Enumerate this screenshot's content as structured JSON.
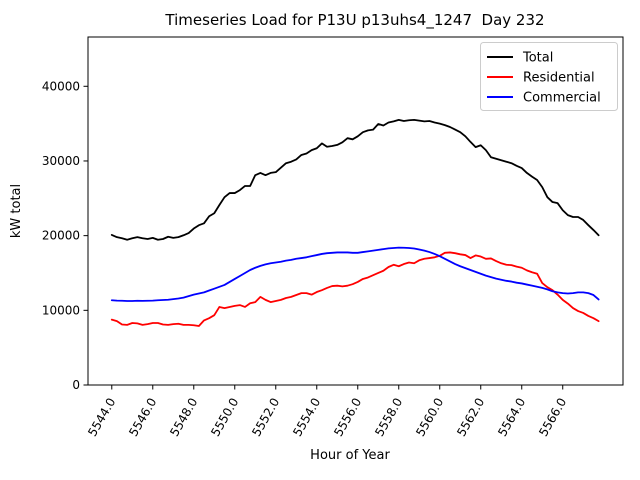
{
  "title": "Timeseries Load for P13U p13uhs4_1247  Day 232",
  "chart_data": {
    "type": "line",
    "title": "Timeseries Load for P13U p13uhs4_1247  Day 232",
    "xlabel": "Hour of Year",
    "ylabel": "kW total",
    "xlim": [
      5542.84,
      5568.94
    ],
    "ylim": [
      0,
      46600
    ],
    "grid": false,
    "legend_position": "upper right",
    "x_tick_values": [
      5544,
      5546,
      5548,
      5550,
      5552,
      5554,
      5556,
      5558,
      5560,
      5562,
      5564,
      5566
    ],
    "x_tick_labels": [
      "5544.0",
      "5546.0",
      "5548.0",
      "5550.0",
      "5552.0",
      "5554.0",
      "5556.0",
      "5558.0",
      "5560.0",
      "5562.0",
      "5564.0",
      "5566.0"
    ],
    "y_tick_values": [
      0,
      10000,
      20000,
      30000,
      40000
    ],
    "y_tick_labels": [
      "0",
      "10000",
      "20000",
      "30000",
      "40000"
    ],
    "x_start": 5544.0,
    "x_step": 0.25,
    "series": [
      {
        "name": "Total",
        "color": "#000000",
        "values": [
          20100,
          19800,
          19650,
          19450,
          19650,
          19800,
          19650,
          19550,
          19700,
          19450,
          19550,
          19850,
          19700,
          19800,
          20050,
          20350,
          20950,
          21400,
          21650,
          22600,
          23000,
          24100,
          25150,
          25700,
          25700,
          26100,
          26650,
          26650,
          28100,
          28400,
          28100,
          28400,
          28500,
          29100,
          29700,
          29900,
          30200,
          30800,
          31000,
          31450,
          31700,
          32350,
          31900,
          32000,
          32150,
          32500,
          33050,
          32900,
          33300,
          33850,
          34100,
          34200,
          34950,
          34750,
          35150,
          35300,
          35500,
          35350,
          35450,
          35500,
          35400,
          35300,
          35350,
          35150,
          35000,
          34800,
          34550,
          34200,
          33850,
          33300,
          32550,
          31850,
          32100,
          31450,
          30500,
          30300,
          30100,
          29900,
          29700,
          29350,
          29050,
          28400,
          27900,
          27450,
          26500,
          25150,
          24500,
          24350,
          23400,
          22750,
          22500,
          22500,
          22100,
          21400,
          20750,
          20050
        ]
      },
      {
        "name": "Residential",
        "color": "#ff0000",
        "values": [
          8750,
          8550,
          8100,
          8050,
          8300,
          8250,
          8050,
          8150,
          8300,
          8300,
          8100,
          8050,
          8150,
          8200,
          8050,
          8050,
          8000,
          7900,
          8650,
          8950,
          9350,
          10450,
          10300,
          10450,
          10600,
          10700,
          10450,
          10950,
          11100,
          11800,
          11400,
          11100,
          11250,
          11400,
          11650,
          11800,
          12050,
          12300,
          12300,
          12100,
          12450,
          12700,
          13000,
          13250,
          13300,
          13200,
          13300,
          13500,
          13800,
          14200,
          14400,
          14700,
          15000,
          15300,
          15800,
          16100,
          15900,
          16200,
          16400,
          16300,
          16700,
          16900,
          17000,
          17100,
          17300,
          17700,
          17750,
          17650,
          17500,
          17400,
          17000,
          17350,
          17200,
          16900,
          16950,
          16600,
          16300,
          16100,
          16050,
          15850,
          15700,
          15350,
          15100,
          14900,
          13650,
          13100,
          12700,
          12100,
          11400,
          10900,
          10300,
          9900,
          9650,
          9250,
          8950,
          8550
        ]
      },
      {
        "name": "Commercial",
        "color": "#0000ff",
        "values": [
          11350,
          11300,
          11280,
          11250,
          11250,
          11280,
          11260,
          11280,
          11300,
          11350,
          11380,
          11420,
          11500,
          11580,
          11700,
          11900,
          12100,
          12250,
          12400,
          12650,
          12900,
          13150,
          13400,
          13800,
          14200,
          14600,
          15000,
          15400,
          15700,
          15950,
          16150,
          16300,
          16400,
          16500,
          16650,
          16750,
          16900,
          17000,
          17100,
          17250,
          17400,
          17550,
          17650,
          17700,
          17750,
          17750,
          17750,
          17700,
          17700,
          17800,
          17900,
          18000,
          18100,
          18200,
          18300,
          18350,
          18400,
          18380,
          18350,
          18280,
          18150,
          18000,
          17800,
          17550,
          17250,
          16900,
          16550,
          16200,
          15900,
          15650,
          15400,
          15150,
          14900,
          14650,
          14450,
          14250,
          14100,
          13950,
          13850,
          13700,
          13600,
          13450,
          13300,
          13150,
          13000,
          12800,
          12550,
          12400,
          12300,
          12250,
          12300,
          12400,
          12400,
          12300,
          12050,
          11450
        ]
      }
    ],
    "legend_border_color": "#cccccc"
  }
}
